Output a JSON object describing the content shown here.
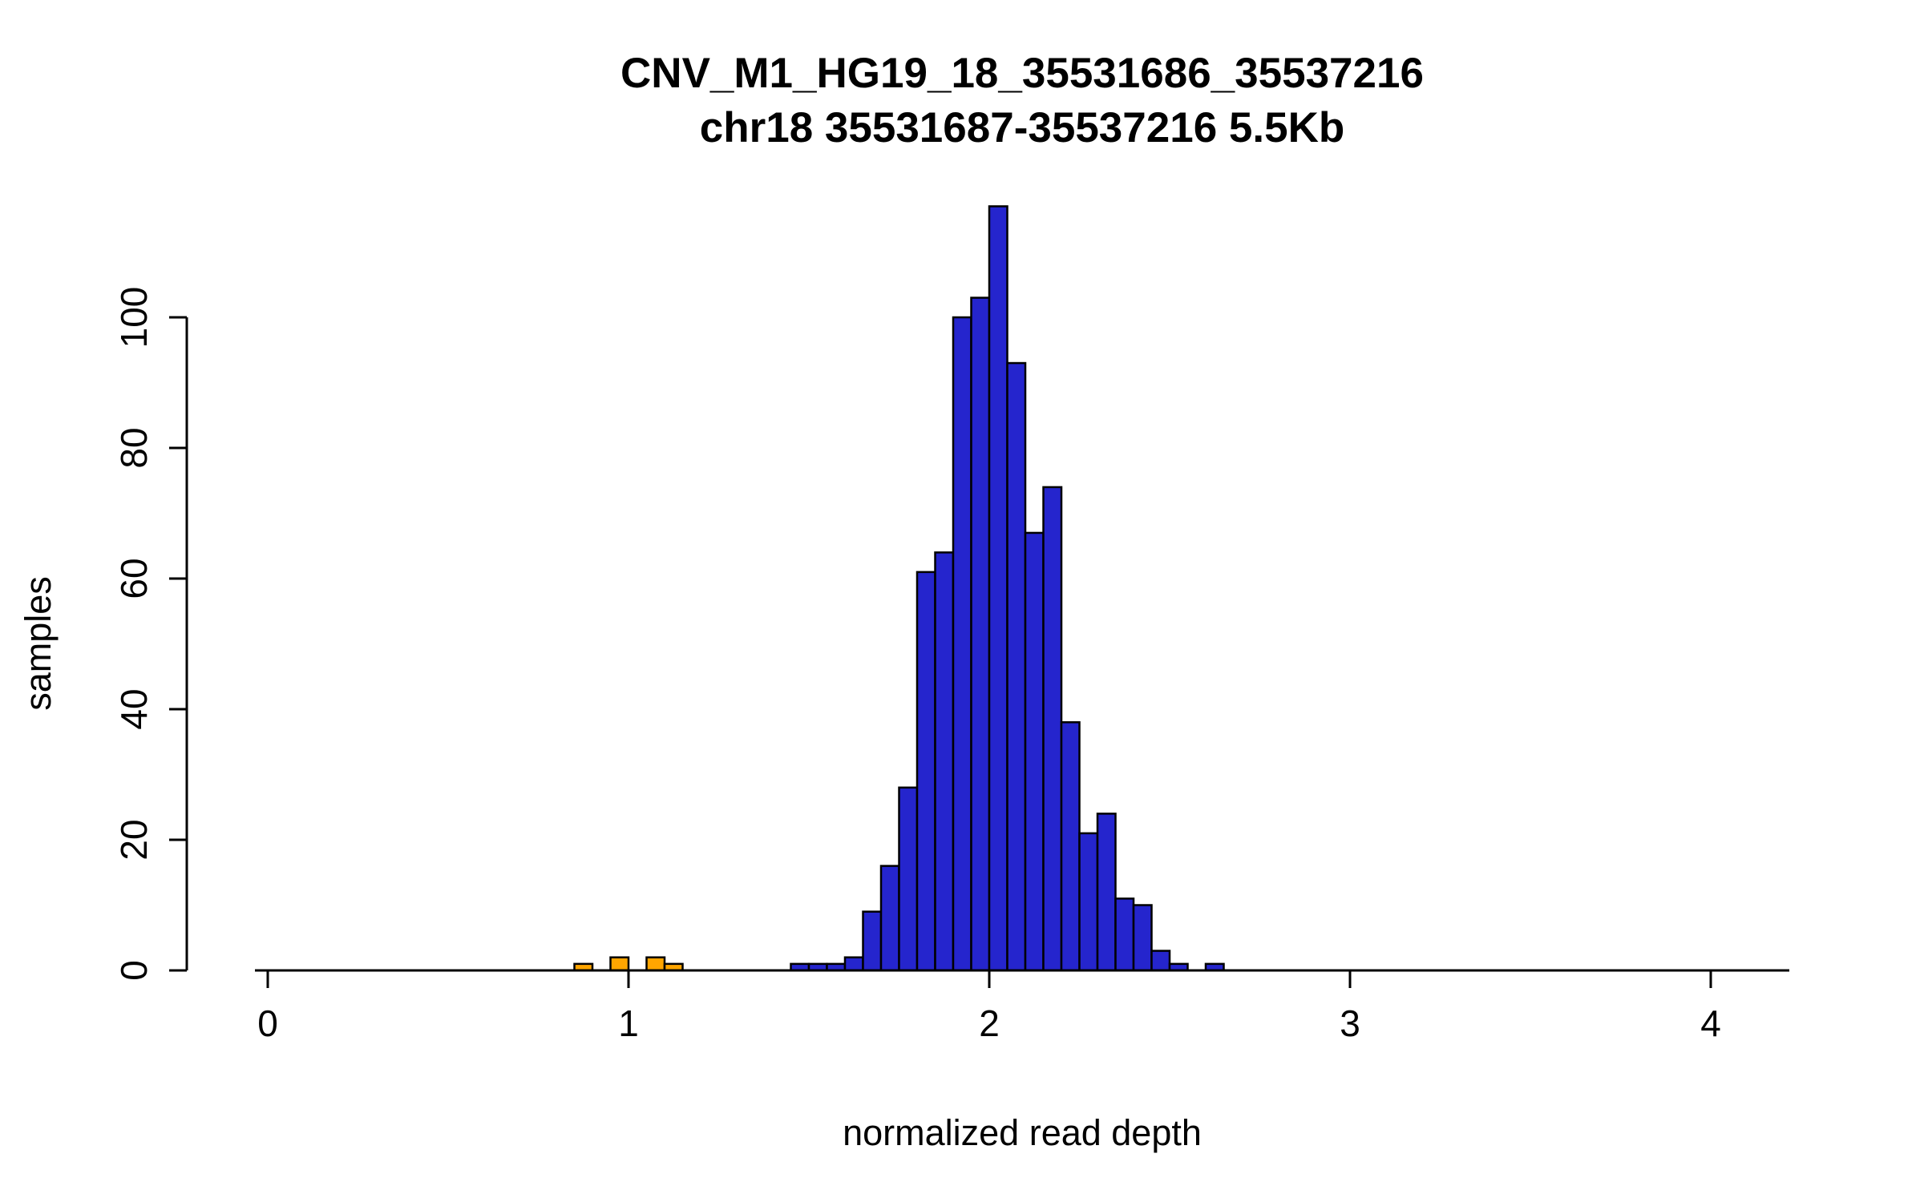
{
  "chart_data": {
    "type": "bar",
    "subtype": "histogram",
    "title": "CNV_M1_HG19_18_35531686_35537216",
    "subtitle": "chr18 35531687-35537216 5.5Kb",
    "xlabel": "normalized read depth",
    "ylabel": "samples",
    "xlim": [
      -0.04,
      4.25
    ],
    "ylim": [
      0,
      117
    ],
    "xticks": [
      0,
      1,
      2,
      3,
      4
    ],
    "yticks": [
      0,
      20,
      40,
      60,
      80,
      100
    ],
    "bin_width": 0.05,
    "grid": false,
    "legend": "none",
    "colors": {
      "normal": "#2525cd",
      "outlier": "#ffa500",
      "border": "#000000",
      "axis": "#000000"
    },
    "bins": [
      {
        "x": 0.85,
        "count": 1,
        "color": "outlier"
      },
      {
        "x": 0.95,
        "count": 2,
        "color": "outlier"
      },
      {
        "x": 1.05,
        "count": 2,
        "color": "outlier"
      },
      {
        "x": 1.1,
        "count": 1,
        "color": "outlier"
      },
      {
        "x": 1.45,
        "count": 1,
        "color": "normal"
      },
      {
        "x": 1.5,
        "count": 1,
        "color": "normal"
      },
      {
        "x": 1.55,
        "count": 1,
        "color": "normal"
      },
      {
        "x": 1.6,
        "count": 2,
        "color": "normal"
      },
      {
        "x": 1.65,
        "count": 9,
        "color": "normal"
      },
      {
        "x": 1.7,
        "count": 16,
        "color": "normal"
      },
      {
        "x": 1.75,
        "count": 28,
        "color": "normal"
      },
      {
        "x": 1.8,
        "count": 61,
        "color": "normal"
      },
      {
        "x": 1.85,
        "count": 64,
        "color": "normal"
      },
      {
        "x": 1.9,
        "count": 100,
        "color": "normal"
      },
      {
        "x": 1.95,
        "count": 103,
        "color": "normal"
      },
      {
        "x": 2.0,
        "count": 117,
        "color": "normal"
      },
      {
        "x": 2.05,
        "count": 93,
        "color": "normal"
      },
      {
        "x": 2.1,
        "count": 67,
        "color": "normal"
      },
      {
        "x": 2.15,
        "count": 74,
        "color": "normal"
      },
      {
        "x": 2.2,
        "count": 38,
        "color": "normal"
      },
      {
        "x": 2.25,
        "count": 21,
        "color": "normal"
      },
      {
        "x": 2.3,
        "count": 24,
        "color": "normal"
      },
      {
        "x": 2.35,
        "count": 11,
        "color": "normal"
      },
      {
        "x": 2.4,
        "count": 10,
        "color": "normal"
      },
      {
        "x": 2.45,
        "count": 3,
        "color": "normal"
      },
      {
        "x": 2.5,
        "count": 1,
        "color": "normal"
      },
      {
        "x": 2.6,
        "count": 1,
        "color": "normal"
      }
    ]
  }
}
